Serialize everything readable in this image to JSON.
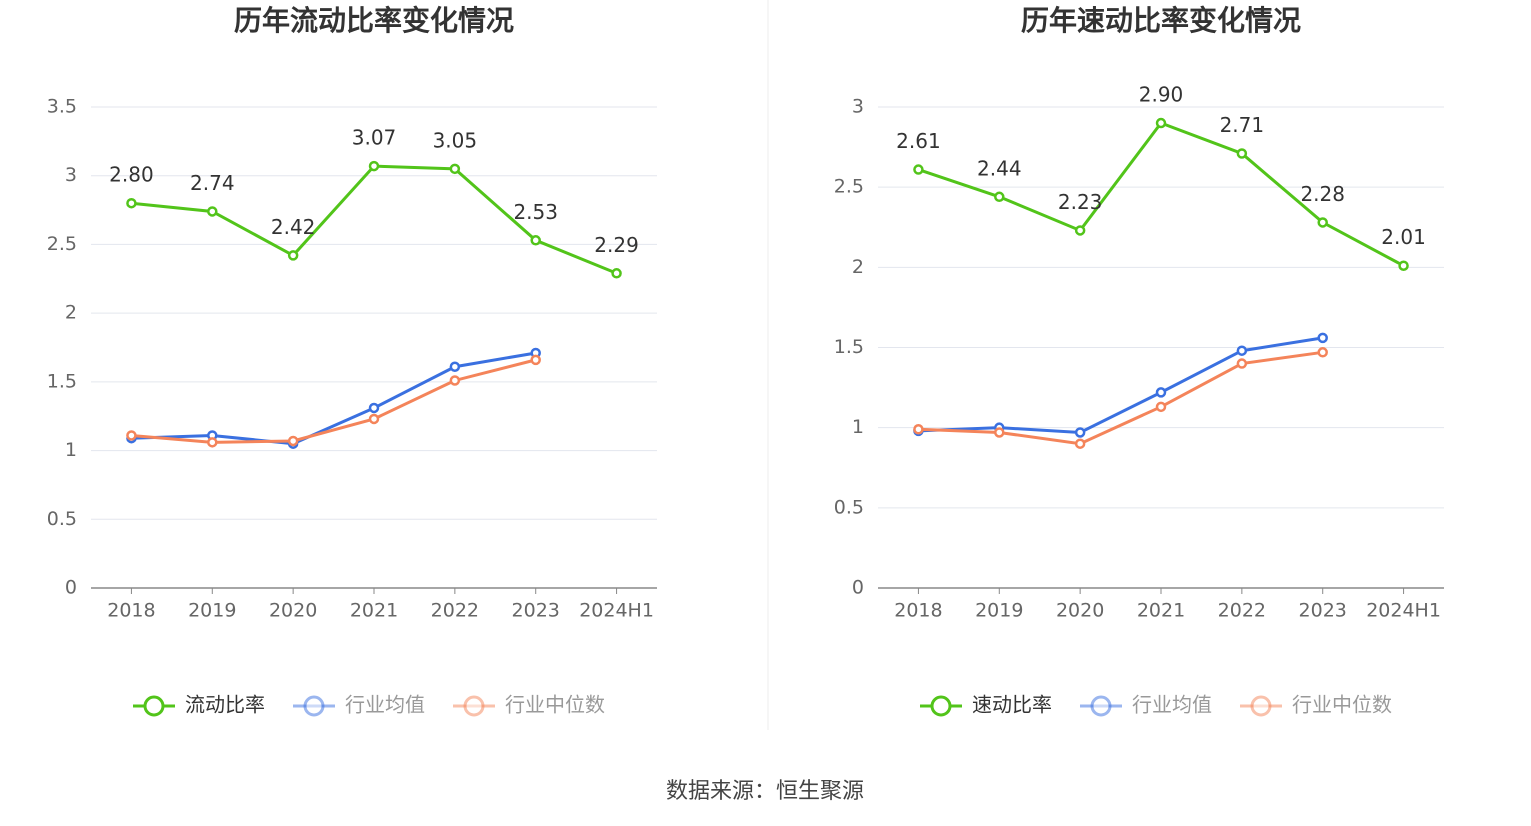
{
  "source": "数据来源：恒生聚源",
  "chart_data": [
    {
      "type": "line",
      "title": "历年流动比率变化情况",
      "categories": [
        "2018",
        "2019",
        "2020",
        "2021",
        "2022",
        "2023",
        "2024H1"
      ],
      "ylim": [
        0,
        3.5
      ],
      "yticks": [
        0,
        0.5,
        1,
        1.5,
        2,
        2.5,
        3,
        3.5
      ],
      "grid": true,
      "series": [
        {
          "name": "流动比率",
          "color": "#52c41a",
          "values": [
            2.8,
            2.74,
            2.42,
            3.07,
            3.05,
            2.53,
            2.29
          ],
          "value_labels": [
            "2.80",
            "2.74",
            "2.42",
            "3.07",
            "3.05",
            "2.53",
            "2.29"
          ]
        },
        {
          "name": "行业均值",
          "color": "#3a70e0",
          "values": [
            1.09,
            1.11,
            1.05,
            1.31,
            1.61,
            1.71,
            null
          ]
        },
        {
          "name": "行业中位数",
          "color": "#f4845a",
          "values": [
            1.11,
            1.06,
            1.07,
            1.23,
            1.51,
            1.66,
            null
          ]
        }
      ]
    },
    {
      "type": "line",
      "title": "历年速动比率变化情况",
      "categories": [
        "2018",
        "2019",
        "2020",
        "2021",
        "2022",
        "2023",
        "2024H1"
      ],
      "ylim": [
        0,
        3
      ],
      "yticks": [
        0,
        0.5,
        1,
        1.5,
        2,
        2.5,
        3
      ],
      "grid": true,
      "series": [
        {
          "name": "速动比率",
          "color": "#52c41a",
          "values": [
            2.61,
            2.44,
            2.23,
            2.9,
            2.71,
            2.28,
            2.01
          ],
          "value_labels": [
            "2.61",
            "2.44",
            "2.23",
            "2.90",
            "2.71",
            "2.28",
            "2.01"
          ]
        },
        {
          "name": "行业均值",
          "color": "#3a70e0",
          "values": [
            0.98,
            1.0,
            0.97,
            1.22,
            1.48,
            1.56,
            null
          ]
        },
        {
          "name": "行业中位数",
          "color": "#f4845a",
          "values": [
            0.99,
            0.97,
            0.9,
            1.13,
            1.4,
            1.47,
            null
          ]
        }
      ]
    }
  ]
}
